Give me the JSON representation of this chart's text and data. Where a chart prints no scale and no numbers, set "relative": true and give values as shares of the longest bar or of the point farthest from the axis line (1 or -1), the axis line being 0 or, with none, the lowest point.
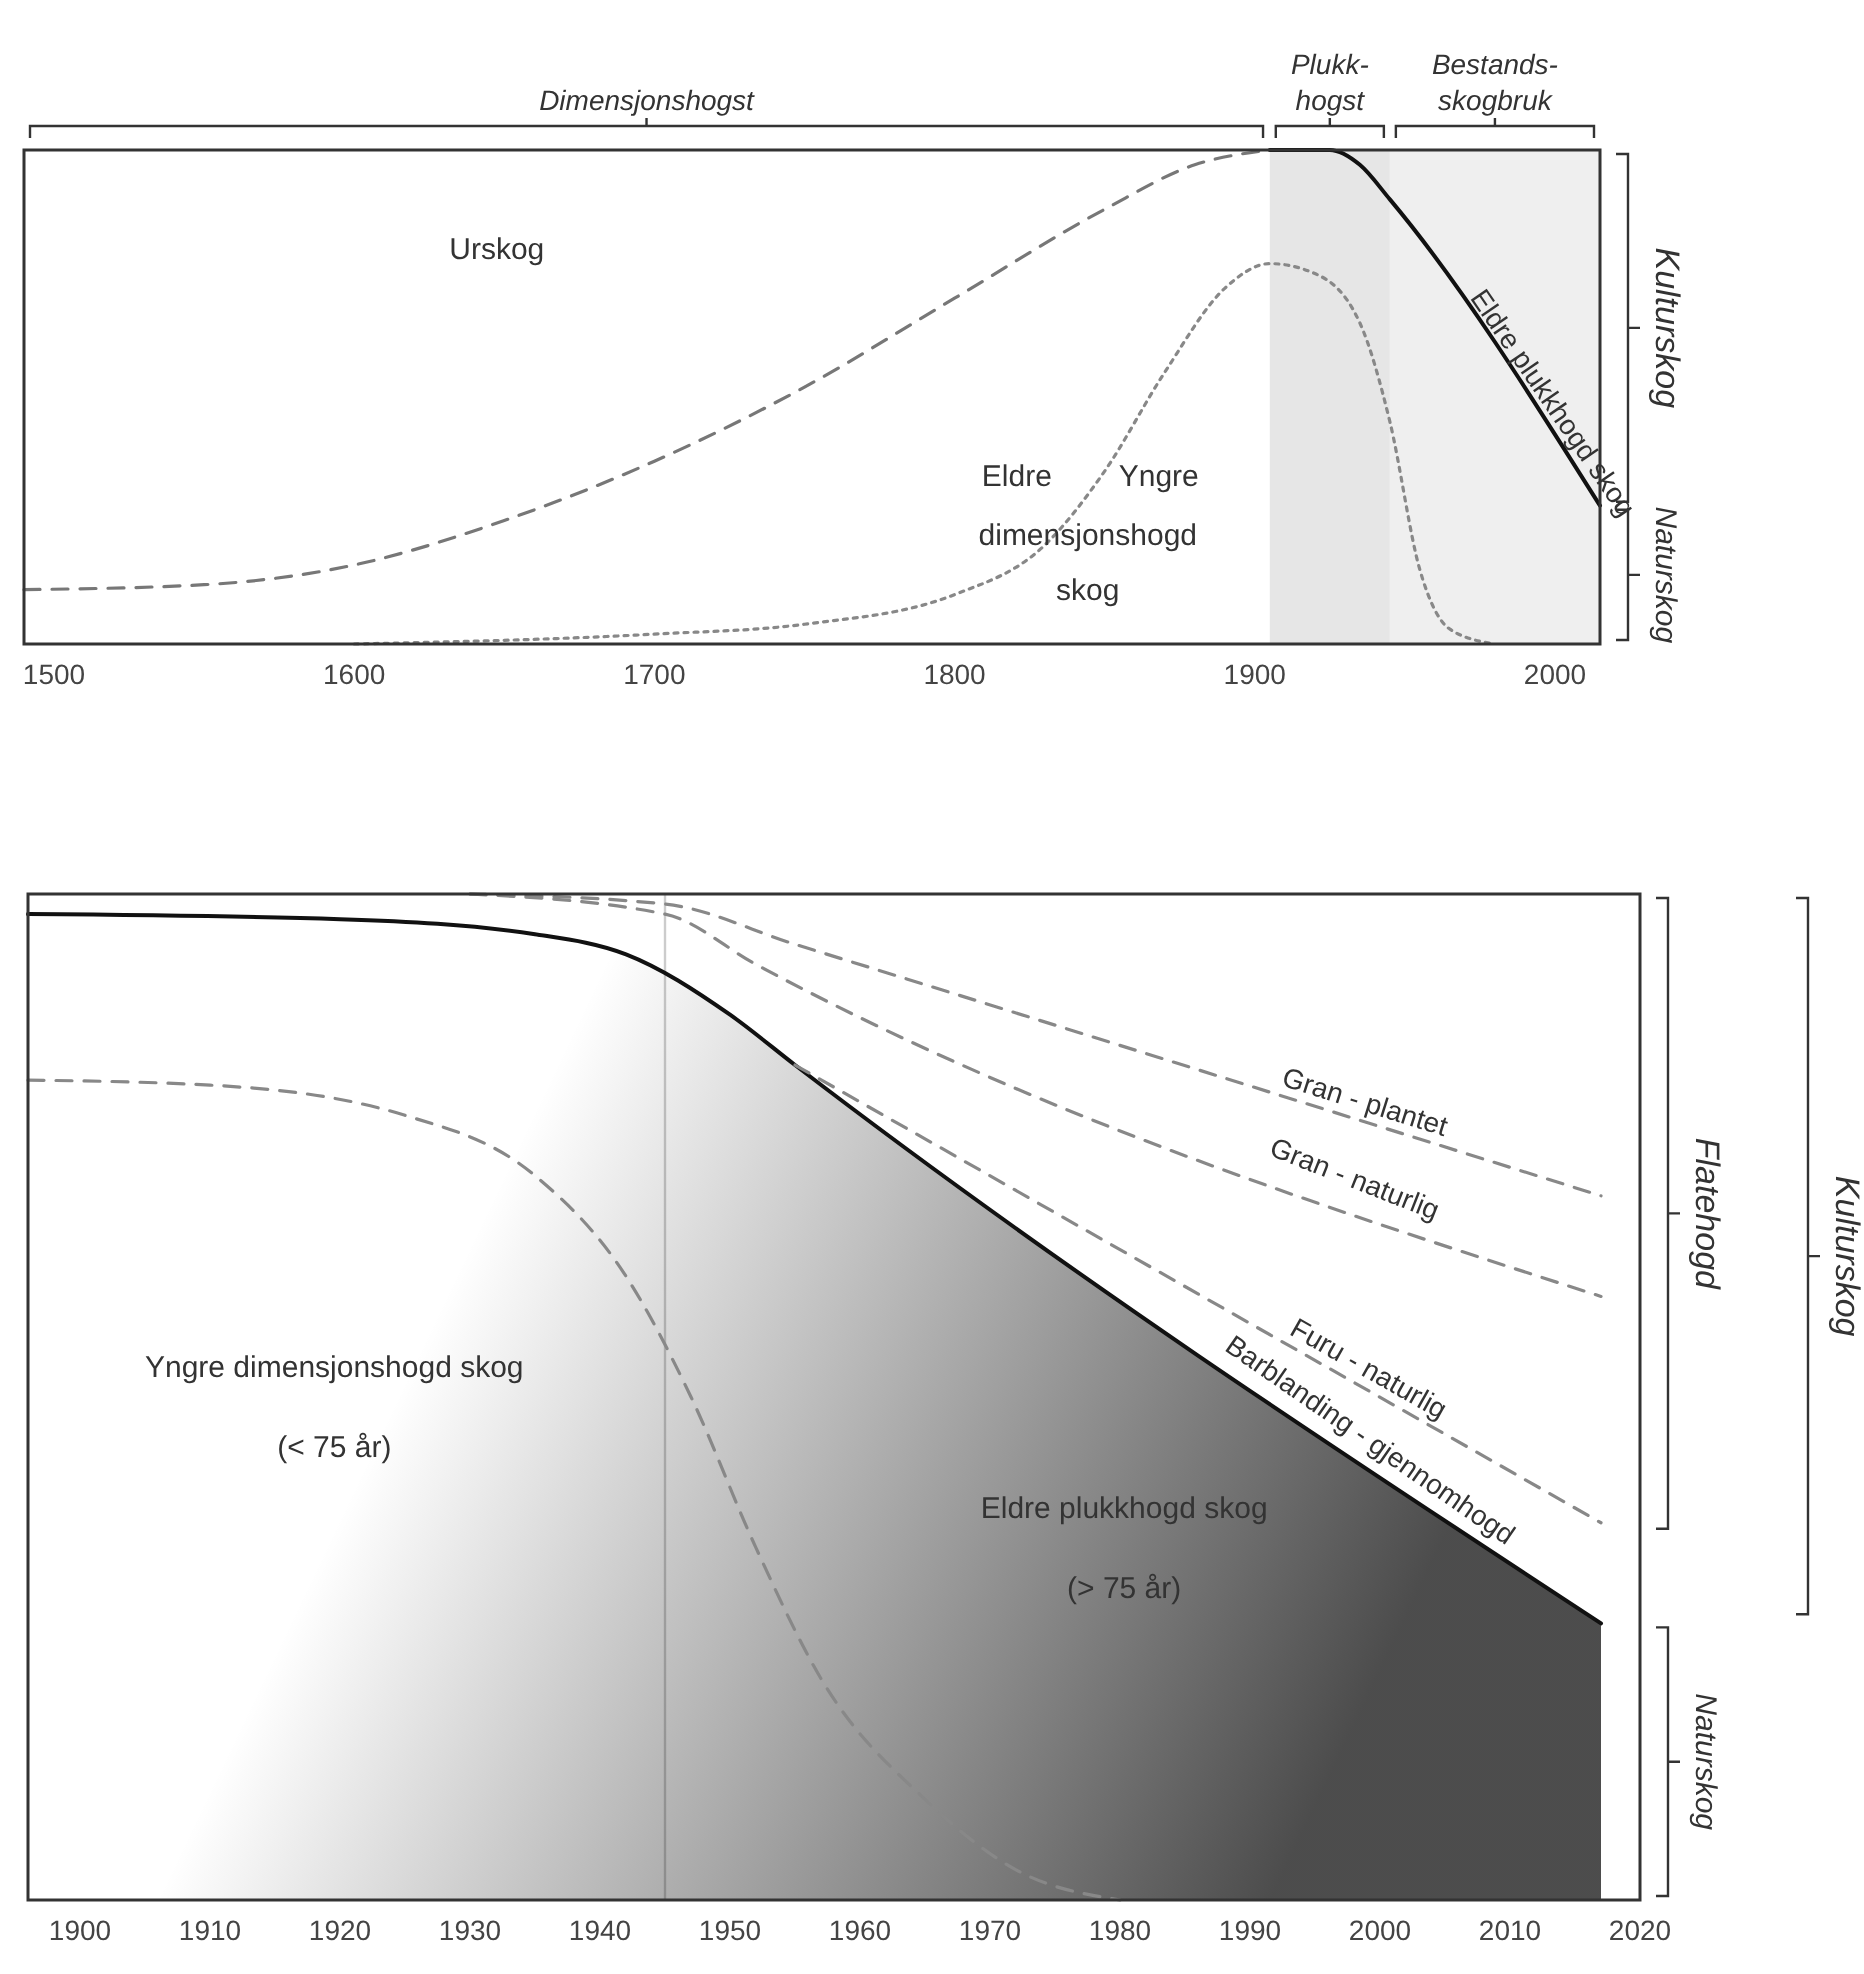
{
  "chart_data": [
    {
      "type": "line",
      "relative": true,
      "tick_labels": "x",
      "xlim": [
        1490,
        2015
      ],
      "xticks": [
        1500,
        1600,
        1700,
        1800,
        1900,
        2000
      ],
      "series": [
        {
          "color": "#777777",
          "line_style": "dashed",
          "x": [
            1490,
            1550,
            1600,
            1650,
            1700,
            1750,
            1800,
            1850,
            1880,
            1905
          ],
          "values": [
            0.11,
            0.12,
            0.16,
            0.25,
            0.37,
            0.52,
            0.7,
            0.88,
            0.97,
            1.0
          ]
        },
        {
          "color": "#888888",
          "line_style": "dotted",
          "x": [
            1600,
            1700,
            1750,
            1800,
            1830,
            1850,
            1870,
            1890,
            1905,
            1920,
            1935,
            1945,
            1955,
            1965,
            1980
          ],
          "values": [
            0.0,
            0.02,
            0.04,
            0.1,
            0.2,
            0.35,
            0.55,
            0.72,
            0.77,
            0.75,
            0.65,
            0.45,
            0.15,
            0.03,
            0.0
          ]
        },
        {
          "name": "Eldre plukkhogd skog",
          "color": "#111111",
          "line_style": "solid",
          "x": [
            1905,
            1925,
            1935,
            1945,
            2015
          ],
          "values": [
            1.0,
            1.0,
            0.97,
            0.9,
            0.28
          ]
        }
      ],
      "bands": [
        {
          "axis": "x",
          "from": 1905,
          "to": 1945,
          "label": "Plukk-\nhogst",
          "color": "#e6e6e6"
        },
        {
          "axis": "x",
          "from": 1945,
          "to": 2015,
          "label": "Bestands-\nskogbruk",
          "color": "#efefef"
        }
      ],
      "annotations": [
        "Urskog",
        "Eldre",
        "Yngre",
        "dimensjonshogd",
        "skog",
        "Kulturskog",
        "Naturskog",
        "Dimensjonshogst"
      ]
    },
    {
      "type": "line",
      "relative": true,
      "tick_labels": "x",
      "xlim": [
        1896,
        2020
      ],
      "xticks": [
        1900,
        1910,
        1920,
        1930,
        1940,
        1950,
        1960,
        1970,
        1980,
        1990,
        2000,
        2010,
        2020
      ],
      "series": [
        {
          "type": "area",
          "name": "Barblanding - gjennomhogd",
          "color": "#111111",
          "line_style": "solid",
          "x": [
            1896,
            1920,
            1935,
            1942,
            1950,
            1955,
            2017
          ],
          "values": [
            0.98,
            0.975,
            0.96,
            0.94,
            0.88,
            0.83,
            0.275
          ]
        },
        {
          "color": "#888888",
          "line_style": "dashed",
          "x": [
            1896,
            1910,
            1925,
            1935,
            1942,
            1947,
            1952,
            1957,
            1965,
            1972,
            1980
          ],
          "values": [
            0.815,
            0.81,
            0.78,
            0.72,
            0.62,
            0.5,
            0.35,
            0.22,
            0.1,
            0.03,
            0.0
          ]
        },
        {
          "name": "Gran - plantet",
          "color": "#888888",
          "line_style": "dashed",
          "x": [
            1930,
            1945,
            1955,
            2017
          ],
          "values": [
            1.0,
            0.99,
            0.95,
            0.7
          ]
        },
        {
          "name": "Gran - naturlig",
          "color": "#888888",
          "line_style": "dashed",
          "x": [
            1930,
            1945,
            1952,
            2017
          ],
          "values": [
            1.0,
            0.98,
            0.93,
            0.6
          ]
        },
        {
          "name": "Furu - naturlig",
          "color": "#888888",
          "line_style": "dashed",
          "x": [
            1955,
            2017
          ],
          "values": [
            0.83,
            0.375
          ]
        }
      ],
      "ref_lines": [
        {
          "axis": "x",
          "value": 1945,
          "color": "#cccccc"
        }
      ],
      "annotations": [
        "Yngre dimensjonshogd skog",
        "(< 75 år)",
        "Eldre plukkhogd skog",
        "(> 75 år)",
        "Flatehogd",
        "Naturskog",
        "Kulturskog"
      ]
    }
  ]
}
